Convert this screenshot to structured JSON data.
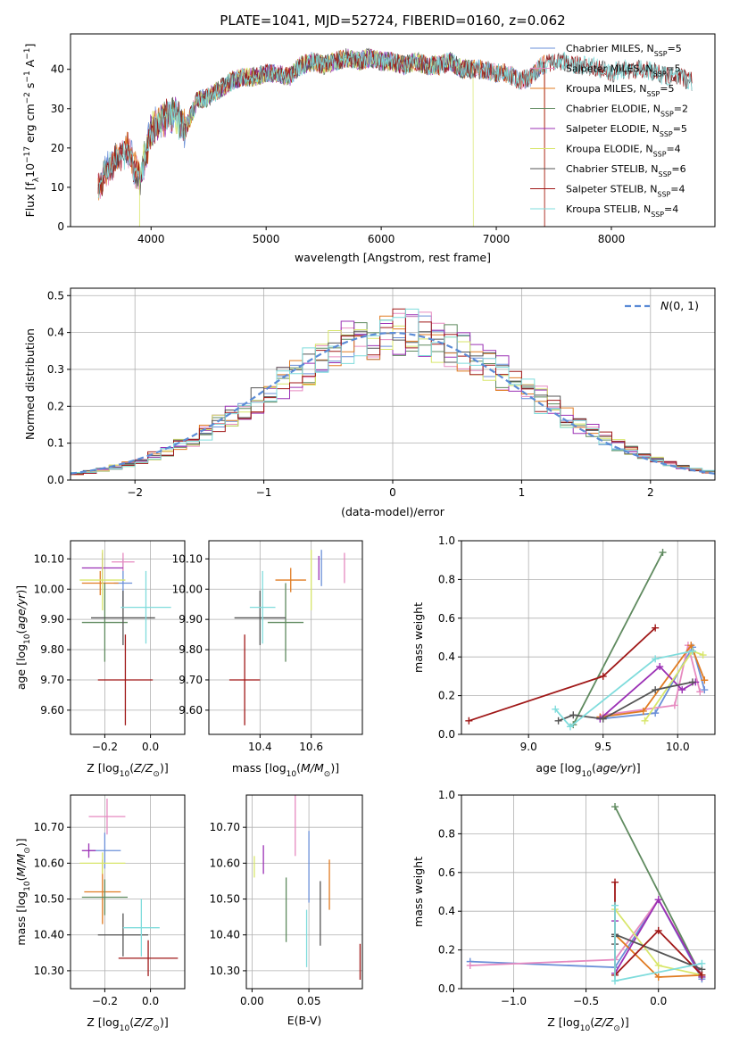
{
  "figure": {
    "title": "PLATE=1041, MJD=52724, FIBERID=0160, z=0.062"
  },
  "series_names": [
    "Chabrier MILES",
    "Salpeter MILES",
    "Kroupa MILES",
    "Chabrier ELODIE",
    "Salpeter ELODIE",
    "Kroupa ELODIE",
    "Chabrier STELIB",
    "Salpeter STELIB",
    "Kroupa STELIB"
  ],
  "series_colors": [
    "#6a8fd8",
    "#e68ac0",
    "#e07b22",
    "#5f8a5f",
    "#9b30b5",
    "#d8e66a",
    "#555555",
    "#a01818",
    "#7fdcdc"
  ],
  "chart_data": [
    {
      "id": "spectrum",
      "type": "line",
      "xlabel": "wavelength [Angstrom, rest frame]",
      "ylabel": "Flux [f_λ10^-17 erg cm^-2 s^-1 A^-1]",
      "xlim": [
        3300,
        8900
      ],
      "ylim": [
        0,
        49
      ],
      "xticks": [
        4000,
        5000,
        6000,
        7000,
        8000
      ],
      "yticks": [
        0,
        10,
        20,
        30,
        40
      ],
      "grid": false,
      "legend_position": "top-right",
      "legend": [
        {
          "label": "Chabrier MILES, N_SSP=5",
          "nssp": "5"
        },
        {
          "label": "Salpeter MILES, N_SSP=5",
          "nssp": "5"
        },
        {
          "label": "Kroupa MILES, N_SSP=5",
          "nssp": "5"
        },
        {
          "label": "Chabrier ELODIE, N_SSP=2",
          "nssp": "2"
        },
        {
          "label": "Salpeter ELODIE, N_SSP=5",
          "nssp": "5"
        },
        {
          "label": "Kroupa ELODIE, N_SSP=4",
          "nssp": "4"
        },
        {
          "label": "Chabrier STELIB, N_SSP=6",
          "nssp": "6"
        },
        {
          "label": "Salpeter STELIB, N_SSP=4",
          "nssp": "4"
        },
        {
          "label": "Kroupa STELIB, N_SSP=4",
          "nssp": "4"
        }
      ],
      "series_ranges": [
        {
          "name": "MILES",
          "x": [
            3540,
            7420
          ]
        },
        {
          "name": "ELODIE",
          "x": [
            3900,
            6800
          ]
        },
        {
          "name": "STELIB",
          "x": [
            3540,
            8700
          ]
        }
      ],
      "envelope": {
        "x": [
          3540,
          3600,
          3700,
          3800,
          3900,
          4000,
          4100,
          4200,
          4300,
          4400,
          4500,
          4600,
          4700,
          4800,
          4900,
          5000,
          5100,
          5200,
          5300,
          5400,
          5500,
          5600,
          5700,
          5800,
          5900,
          6000,
          6100,
          6200,
          6300,
          6400,
          6500,
          6600,
          6700,
          6800,
          6900,
          7000,
          7100,
          7200,
          7300,
          7400,
          7500,
          7600,
          7700,
          7800,
          7900,
          8000,
          8100,
          8200,
          8300,
          8400,
          8500,
          8600,
          8700
        ],
        "y": [
          10,
          14,
          17,
          20,
          12,
          24,
          27,
          29,
          25,
          32,
          33,
          35,
          37,
          38,
          38,
          39,
          39,
          38,
          41,
          42,
          41,
          42,
          43,
          42,
          43,
          42,
          42,
          41,
          42,
          41,
          41,
          42,
          40,
          40,
          40,
          39,
          39,
          37,
          38,
          41,
          42,
          42,
          41,
          41,
          40,
          39,
          40,
          40,
          40,
          39,
          38,
          38,
          37
        ]
      }
    },
    {
      "id": "residuals",
      "type": "histogram",
      "xlabel": "(data-model)/error",
      "ylabel": "Normed distribution",
      "xlim": [
        -2.5,
        2.5
      ],
      "ylim": [
        0,
        0.52
      ],
      "xticks": [
        -2,
        -1,
        0,
        1,
        2
      ],
      "yticks": [
        0.0,
        0.1,
        0.2,
        0.3,
        0.4,
        0.5
      ],
      "grid": true,
      "legend_position": "top-right",
      "legend": [
        {
          "label": "N(0,1)"
        }
      ],
      "bin_edges": [
        -2.5,
        -2.4,
        -2.3,
        -2.2,
        -2.1,
        -2.0,
        -1.9,
        -1.8,
        -1.7,
        -1.6,
        -1.5,
        -1.4,
        -1.3,
        -1.2,
        -1.1,
        -1.0,
        -0.9,
        -0.8,
        -0.7,
        -0.6,
        -0.5,
        -0.4,
        -0.3,
        -0.2,
        -0.1,
        0.0,
        0.1,
        0.2,
        0.3,
        0.4,
        0.5,
        0.6,
        0.7,
        0.8,
        0.9,
        1.0,
        1.1,
        1.2,
        1.3,
        1.4,
        1.5,
        1.6,
        1.7,
        1.8,
        1.9,
        2.0,
        2.1,
        2.2,
        2.3,
        2.4,
        2.5
      ],
      "reference": [
        0.018,
        0.022,
        0.028,
        0.035,
        0.044,
        0.054,
        0.066,
        0.079,
        0.094,
        0.111,
        0.13,
        0.15,
        0.171,
        0.194,
        0.218,
        0.242,
        0.266,
        0.29,
        0.312,
        0.333,
        0.352,
        0.368,
        0.381,
        0.391,
        0.397,
        0.399,
        0.397,
        0.391,
        0.381,
        0.368,
        0.352,
        0.333,
        0.312,
        0.29,
        0.266,
        0.242,
        0.218,
        0.194,
        0.171,
        0.15,
        0.13,
        0.111,
        0.094,
        0.079,
        0.066,
        0.054,
        0.044,
        0.035,
        0.028,
        0.022
      ]
    },
    {
      "id": "age_vs_Z",
      "type": "errorbar",
      "xlabel": "Z [log10(Z/Z_sun)]",
      "ylabel": "age [log10(age/yr)]",
      "xlim": [
        -0.35,
        0.15
      ],
      "ylim": [
        9.52,
        10.16
      ],
      "xticks": [
        -0.2,
        0.0
      ],
      "yticks": [
        9.6,
        9.7,
        9.8,
        9.9,
        10.0,
        10.1
      ],
      "grid": true,
      "points": [
        {
          "x": -0.12,
          "xerr": 0.04,
          "y": 10.02,
          "yerr": 0.08
        },
        {
          "x": -0.12,
          "xerr": 0.05,
          "y": 10.09,
          "yerr": 0.03
        },
        {
          "x": -0.22,
          "xerr": 0.08,
          "y": 10.02,
          "yerr": 0.04
        },
        {
          "x": -0.2,
          "xerr": 0.1,
          "y": 9.89,
          "yerr": 0.13
        },
        {
          "x": -0.21,
          "xerr": 0.09,
          "y": 10.07,
          "yerr": 0.05
        },
        {
          "x": -0.21,
          "xerr": 0.1,
          "y": 10.03,
          "yerr": 0.1
        },
        {
          "x": -0.12,
          "xerr": 0.14,
          "y": 9.905,
          "yerr": 0.09
        },
        {
          "x": -0.11,
          "xerr": 0.12,
          "y": 9.7,
          "yerr": 0.15
        },
        {
          "x": -0.02,
          "xerr": 0.11,
          "y": 9.94,
          "yerr": 0.12
        }
      ]
    },
    {
      "id": "age_vs_mass",
      "type": "errorbar",
      "xlabel": "mass [log10(M/M_sun)]",
      "ylabel": "",
      "xlim": [
        10.2,
        10.8
      ],
      "ylim": [
        9.52,
        10.16
      ],
      "xticks": [
        10.4,
        10.6
      ],
      "yticks": [
        9.6,
        9.7,
        9.8,
        9.9,
        10.0,
        10.1
      ],
      "grid": true,
      "points": [
        {
          "x": 10.64,
          "xerr": 0.0,
          "y": 10.07,
          "yerr": 0.06
        },
        {
          "x": 10.73,
          "xerr": 0.0,
          "y": 10.07,
          "yerr": 0.05
        },
        {
          "x": 10.52,
          "xerr": 0.06,
          "y": 10.03,
          "yerr": 0.04
        },
        {
          "x": 10.5,
          "xerr": 0.07,
          "y": 9.89,
          "yerr": 0.13
        },
        {
          "x": 10.63,
          "xerr": 0.0,
          "y": 10.07,
          "yerr": 0.04
        },
        {
          "x": 10.6,
          "xerr": 0.0,
          "y": 10.03,
          "yerr": 0.1
        },
        {
          "x": 10.4,
          "xerr": 0.1,
          "y": 9.905,
          "yerr": 0.09
        },
        {
          "x": 10.34,
          "xerr": 0.06,
          "y": 9.7,
          "yerr": 0.15
        },
        {
          "x": 10.41,
          "xerr": 0.05,
          "y": 9.94,
          "yerr": 0.12
        }
      ]
    },
    {
      "id": "weight_vs_age",
      "type": "line",
      "xlabel": "age [log10(age/yr)]",
      "ylabel": "mass weight",
      "xlim": [
        8.55,
        10.25
      ],
      "ylim": [
        0.0,
        1.0
      ],
      "xticks": [
        9.0,
        9.5,
        10.0
      ],
      "yticks": [
        0.0,
        0.2,
        0.4,
        0.6,
        0.8,
        1.0
      ],
      "grid": true,
      "series": [
        {
          "x": [
            9.48,
            9.85,
            10.1,
            10.18
          ],
          "y": [
            0.08,
            0.11,
            0.45,
            0.23
          ]
        },
        {
          "x": [
            9.5,
            9.98,
            10.07,
            10.15
          ],
          "y": [
            0.1,
            0.15,
            0.46,
            0.22
          ]
        },
        {
          "x": [
            9.48,
            9.77,
            10.09,
            10.18
          ],
          "y": [
            0.09,
            0.12,
            0.46,
            0.28
          ]
        },
        {
          "x": [
            9.3,
            9.9
          ],
          "y": [
            0.05,
            0.94
          ]
        },
        {
          "x": [
            9.48,
            9.88,
            10.03,
            10.12
          ],
          "y": [
            0.08,
            0.35,
            0.23,
            0.27
          ]
        },
        {
          "x": [
            9.78,
            10.1,
            10.17
          ],
          "y": [
            0.07,
            0.43,
            0.41
          ]
        },
        {
          "x": [
            9.2,
            9.3,
            9.5,
            9.85,
            10.1
          ],
          "y": [
            0.07,
            0.1,
            0.08,
            0.23,
            0.27
          ]
        },
        {
          "x": [
            8.6,
            9.5,
            9.85
          ],
          "y": [
            0.07,
            0.3,
            0.55
          ]
        },
        {
          "x": [
            9.18,
            9.28,
            9.85,
            10.1
          ],
          "y": [
            0.13,
            0.04,
            0.39,
            0.43
          ]
        }
      ]
    },
    {
      "id": "mass_vs_Z",
      "type": "errorbar",
      "xlabel": "Z [log10(Z/Z_sun)]",
      "ylabel": "mass [log10(M/M_sun)]",
      "xlim": [
        -0.35,
        0.15
      ],
      "ylim": [
        10.25,
        10.79
      ],
      "xticks": [
        -0.2,
        0.0
      ],
      "yticks": [
        10.3,
        10.4,
        10.5,
        10.6,
        10.7
      ],
      "grid": true,
      "points": [
        {
          "x": -0.2,
          "xerr": 0.07,
          "y": 10.635,
          "yerr": 0.05
        },
        {
          "x": -0.19,
          "xerr": 0.08,
          "y": 10.73,
          "yerr": 0.05
        },
        {
          "x": -0.21,
          "xerr": 0.08,
          "y": 10.52,
          "yerr": 0.09
        },
        {
          "x": -0.2,
          "xerr": 0.1,
          "y": 10.505,
          "yerr": 0.05
        },
        {
          "x": -0.27,
          "xerr": 0.03,
          "y": 10.635,
          "yerr": 0.02
        },
        {
          "x": -0.21,
          "xerr": 0.1,
          "y": 10.6,
          "yerr": 0.03
        },
        {
          "x": -0.12,
          "xerr": 0.11,
          "y": 10.4,
          "yerr": 0.06
        },
        {
          "x": -0.01,
          "xerr": 0.13,
          "y": 10.335,
          "yerr": 0.05
        },
        {
          "x": -0.04,
          "xerr": 0.08,
          "y": 10.42,
          "yerr": 0.08
        }
      ]
    },
    {
      "id": "mass_vs_EBV",
      "type": "errorbar",
      "xlabel": "E(B-V)",
      "ylabel": "",
      "xlim": [
        -0.005,
        0.097
      ],
      "ylim": [
        10.25,
        10.79
      ],
      "xticks": [
        0.0,
        0.05
      ],
      "yticks": [
        10.3,
        10.4,
        10.5,
        10.6,
        10.7
      ],
      "grid": true,
      "points": [
        {
          "x": 0.05,
          "xerr": 0.0,
          "y": 10.59,
          "yerr": 0.1
        },
        {
          "x": 0.038,
          "xerr": 0.0,
          "y": 10.71,
          "yerr": 0.09
        },
        {
          "x": 0.068,
          "xerr": 0.0,
          "y": 10.54,
          "yerr": 0.07
        },
        {
          "x": 0.03,
          "xerr": 0.0,
          "y": 10.47,
          "yerr": 0.09
        },
        {
          "x": 0.01,
          "xerr": 0.0,
          "y": 10.61,
          "yerr": 0.04
        },
        {
          "x": 0.002,
          "xerr": 0.0,
          "y": 10.59,
          "yerr": 0.03
        },
        {
          "x": 0.06,
          "xerr": 0.0,
          "y": 10.46,
          "yerr": 0.09
        },
        {
          "x": 0.095,
          "xerr": 0.0,
          "y": 10.325,
          "yerr": 0.05
        },
        {
          "x": 0.048,
          "xerr": 0.0,
          "y": 10.39,
          "yerr": 0.08
        }
      ]
    },
    {
      "id": "weight_vs_Z",
      "type": "line",
      "xlabel": "Z [log10(Z/Z_sun)]",
      "ylabel": "mass weight",
      "xlim": [
        -1.36,
        0.39
      ],
      "ylim": [
        0.0,
        1.0
      ],
      "xticks": [
        -1.0,
        -0.5,
        0.0
      ],
      "yticks": [
        0.0,
        0.2,
        0.4,
        0.6,
        0.8,
        1.0
      ],
      "grid": true,
      "series": [
        {
          "x": [
            -1.3,
            -0.3,
            0.0,
            0.3
          ],
          "y": [
            0.14,
            0.11,
            0.46,
            0.05
          ]
        },
        {
          "x": [
            -1.3,
            -0.3,
            0.0,
            0.3
          ],
          "y": [
            0.12,
            0.15,
            0.46,
            0.07
          ]
        },
        {
          "x": [
            -0.3,
            0.0,
            0.3
          ],
          "y": [
            0.28,
            0.06,
            0.07
          ]
        },
        {
          "x": [
            -0.3,
            0.3
          ],
          "y": [
            0.94,
            0.06
          ]
        },
        {
          "x": [
            -0.3,
            -0.3,
            0.0,
            0.3
          ],
          "y": [
            0.35,
            0.08,
            0.46,
            0.06
          ]
        },
        {
          "x": [
            -0.3,
            0.0,
            0.3
          ],
          "y": [
            0.41,
            0.12,
            0.07
          ]
        },
        {
          "x": [
            -0.3,
            -0.3,
            -0.3,
            0.3
          ],
          "y": [
            0.27,
            0.23,
            0.28,
            0.1
          ]
        },
        {
          "x": [
            -0.3,
            -0.3,
            0.0,
            0.3
          ],
          "y": [
            0.55,
            0.07,
            0.3,
            0.07
          ]
        },
        {
          "x": [
            -0.3,
            -0.3,
            0.3
          ],
          "y": [
            0.43,
            0.04,
            0.13
          ]
        }
      ]
    }
  ]
}
